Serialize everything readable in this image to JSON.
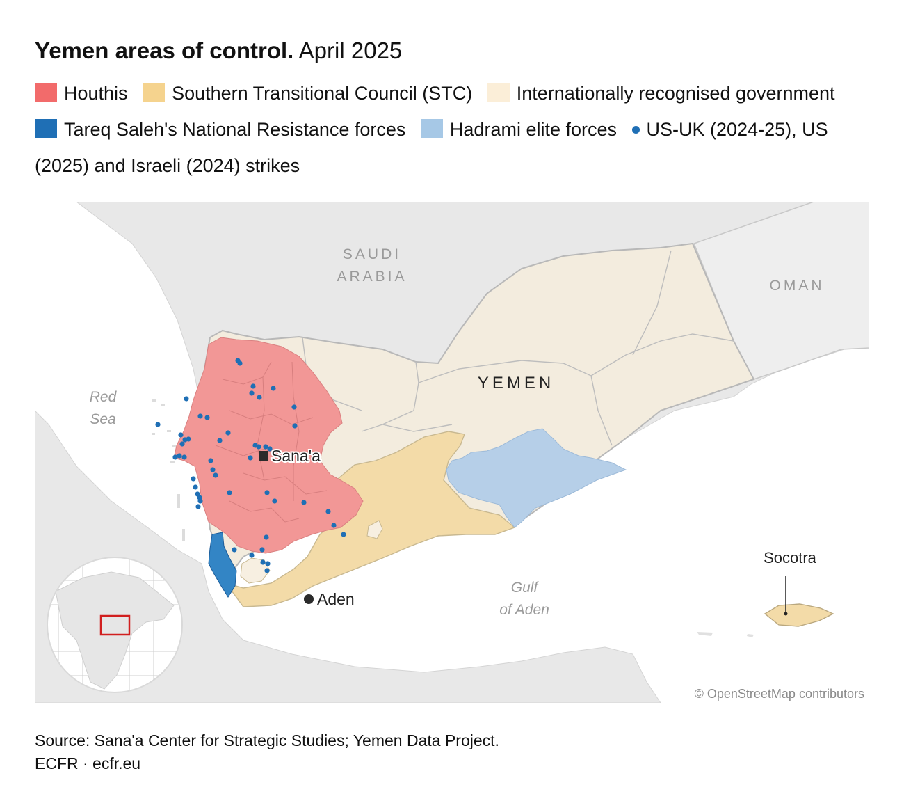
{
  "title": {
    "bold": "Yemen areas of control.",
    "light": "April 2025"
  },
  "legend": [
    {
      "label": "Houthis",
      "color": "#f26b6b"
    },
    {
      "label": "Southern Transitional Council (STC)",
      "color": "#f5d38e"
    },
    {
      "label": "Internationally recognised government",
      "color": "#fbeed8"
    },
    {
      "label": "Tareq Saleh's National Resistance forces",
      "color": "#1f6fb5"
    },
    {
      "label": "Hadrami elite forces",
      "color": "#a6c8e6"
    }
  ],
  "strikes_legend": {
    "label": "US-UK (2024-25), US (2025) and Israeli (2024) strikes",
    "color": "#1f6fb5"
  },
  "map": {
    "countries": {
      "saudi_line1": "SAUDI",
      "saudi_line2": "ARABIA",
      "oman": "OMAN",
      "yemen": "YEMEN"
    },
    "seas": {
      "red_sea_line1": "Red",
      "red_sea_line2": "Sea",
      "gulf_line1": "Gulf",
      "gulf_line2": "of Aden"
    },
    "cities": {
      "sanaa": "Sana'a",
      "aden": "Aden",
      "socotra": "Socotra"
    },
    "attribution": "© OpenStreetMap contributors"
  },
  "source": {
    "line1": "Source: Sana'a Center for Strategic Studies; Yemen Data Project.",
    "line2": "ECFR · ecfr.eu"
  }
}
